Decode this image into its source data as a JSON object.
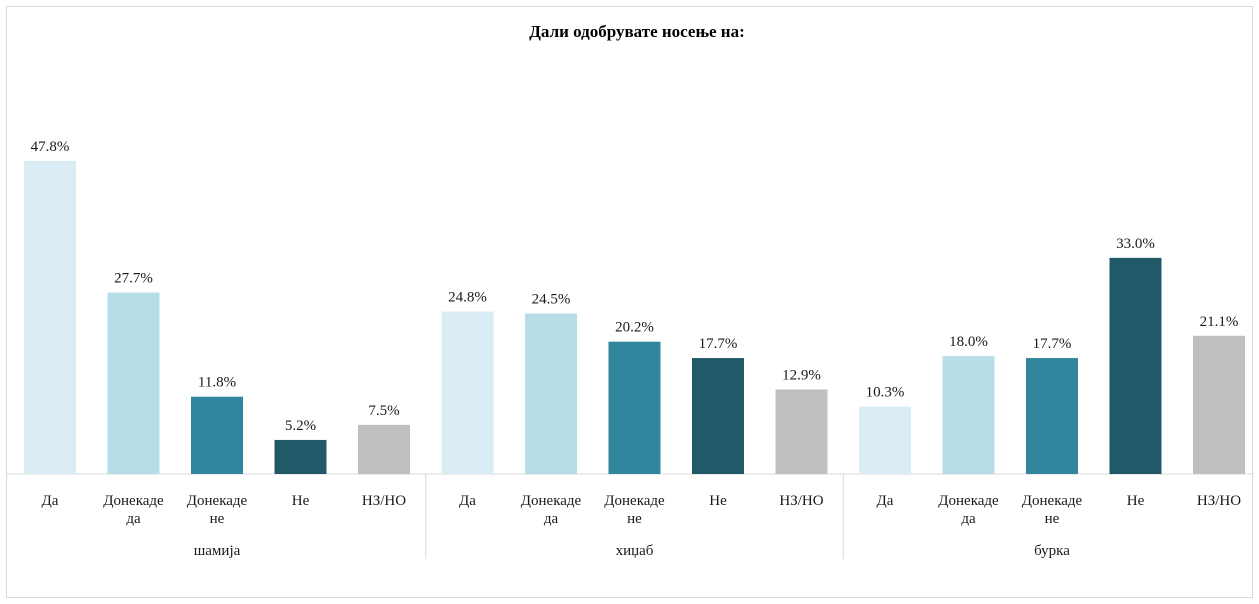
{
  "chart_data": {
    "type": "bar",
    "title": "Дали одобрувате носење на:",
    "xlabel": "",
    "ylabel": "",
    "ylim": [
      0,
      50
    ],
    "grid": false,
    "legend": "none",
    "value_format": "percent_1dp",
    "groups": [
      {
        "name": "шамија",
        "categories": [
          "Да",
          "Донекаде да",
          "Донекаде не",
          "Не",
          "НЗ/НО"
        ],
        "values": [
          47.8,
          27.7,
          11.8,
          5.2,
          7.5
        ]
      },
      {
        "name": "хиџаб",
        "categories": [
          "Да",
          "Донекаде да",
          "Донекаде не",
          "Не",
          "НЗ/НО"
        ],
        "values": [
          24.8,
          24.5,
          20.2,
          17.7,
          12.9
        ]
      },
      {
        "name": "бурка",
        "categories": [
          "Да",
          "Донекаде да",
          "Донекаде не",
          "Не",
          "НЗ/НО"
        ],
        "values": [
          10.3,
          18.0,
          17.7,
          33.0,
          21.1
        ]
      }
    ],
    "category_colors": {
      "Да": "#daedf4",
      "Донекаде да": "#b7dde8",
      "Донекаде не": "#31859c",
      "Не": "#215968",
      "НЗ/НО": "#bfbfbf"
    },
    "tick_label_lines": {
      "Да": [
        "Да"
      ],
      "Донекаде да": [
        "Донекаде",
        "да"
      ],
      "Донекаде не": [
        "Донекаде",
        "не"
      ],
      "Не": [
        "Не"
      ],
      "НЗ/НО": [
        "НЗ/НО"
      ]
    }
  }
}
